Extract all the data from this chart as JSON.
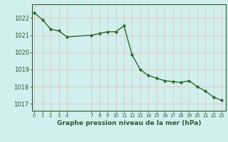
{
  "x": [
    0,
    1,
    2,
    3,
    4,
    7,
    8,
    9,
    10,
    11,
    12,
    13,
    14,
    15,
    16,
    17,
    18,
    19,
    20,
    21,
    22,
    23
  ],
  "y": [
    1022.3,
    1021.9,
    1021.35,
    1021.25,
    1020.9,
    1021.0,
    1021.1,
    1021.2,
    1021.2,
    1021.55,
    1019.85,
    1019.0,
    1018.65,
    1018.5,
    1018.35,
    1018.3,
    1018.25,
    1018.35,
    1018.0,
    1017.75,
    1017.4,
    1017.2
  ],
  "line_color": "#2d6a2d",
  "marker_size": 2.5,
  "bg_color": "#cff0ee",
  "grid_color": "#f0c0c0",
  "tick_color": "#2d5c2d",
  "label_color": "#2d5c2d",
  "xlabel": "Graphe pression niveau de la mer (hPa)",
  "ylim": [
    1016.6,
    1022.8
  ],
  "yticks": [
    1017,
    1018,
    1019,
    1020,
    1021,
    1022
  ],
  "xticks": [
    0,
    1,
    2,
    3,
    4,
    7,
    8,
    9,
    10,
    11,
    12,
    13,
    14,
    15,
    16,
    17,
    18,
    19,
    20,
    21,
    22,
    23
  ],
  "xtick_labels": [
    "0",
    "1",
    "2",
    "3",
    "4",
    "7",
    "8",
    "9",
    "10",
    "11",
    "12",
    "13",
    "14",
    "15",
    "16",
    "17",
    "18",
    "19",
    "20",
    "21",
    "22",
    "23"
  ],
  "line_width": 1.0,
  "spine_color": "#2d5c2d"
}
